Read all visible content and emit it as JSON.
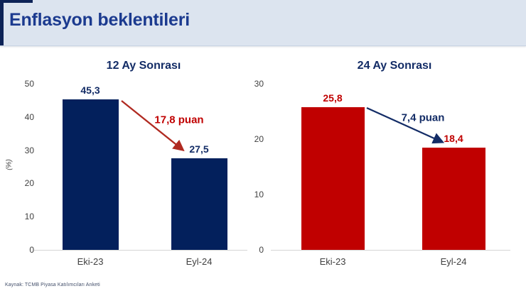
{
  "header": {
    "title": "Enflasyon beklentileri"
  },
  "footer": {
    "source": "Kaynak: TCMB Piyasa Katılımcıları Anketi"
  },
  "colors": {
    "header_bg": "#dce4ef",
    "header_title": "#1b3a8f",
    "accent": "#0d2357",
    "navy": "#03205c",
    "navy_text": "#132c66",
    "red": "#c00000",
    "red_arrow": "#b02a21",
    "tick_text": "#404040",
    "axis_line": "#d5d5d5",
    "source_text": "#44506b"
  },
  "chart_data": [
    {
      "type": "bar",
      "title": "12 Ay Sonrası",
      "categories": [
        "Eki-23",
        "Eyl-24"
      ],
      "values": [
        45.3,
        27.5
      ],
      "value_labels": [
        "45,3",
        "27,5"
      ],
      "xlabel": "",
      "ylabel": "(%)",
      "ylim": [
        0,
        50
      ],
      "yticks": [
        0,
        10,
        20,
        30,
        40,
        50
      ],
      "grid": false,
      "legend": "none",
      "bar_color": "#03205c",
      "value_label_color": "#132c66",
      "annotation": {
        "text": "17,8 puan",
        "color": "#c00000",
        "arrow_color": "#b02a21"
      }
    },
    {
      "type": "bar",
      "title": "24 Ay Sonrası",
      "categories": [
        "Eki-23",
        "Eyl-24"
      ],
      "values": [
        25.8,
        18.4
      ],
      "value_labels": [
        "25,8",
        "18,4"
      ],
      "xlabel": "",
      "ylabel": "",
      "ylim": [
        0,
        30
      ],
      "yticks": [
        0,
        10,
        20,
        30
      ],
      "grid": false,
      "legend": "none",
      "bar_color": "#c00000",
      "value_label_color": "#c00000",
      "annotation": {
        "text": "7,4 puan",
        "color": "#132c66",
        "arrow_color": "#132c66"
      }
    }
  ]
}
